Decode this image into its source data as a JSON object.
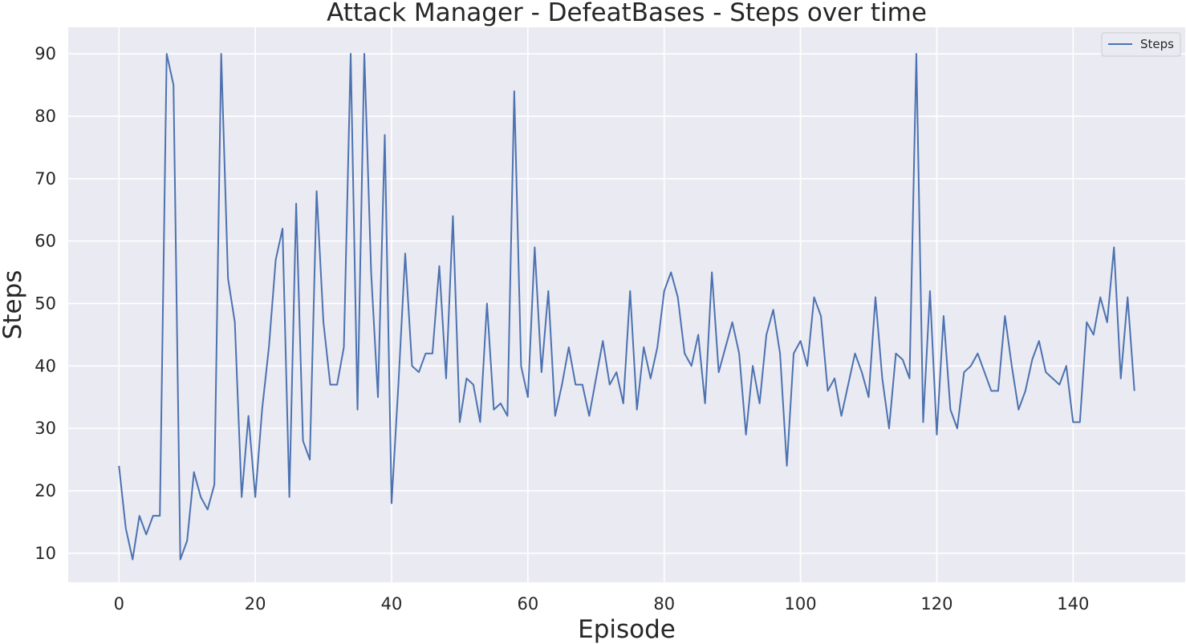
{
  "chart_data": {
    "type": "line",
    "title": "Attack Manager - DefeatBases - Steps over time",
    "xlabel": "Episode",
    "ylabel": "Steps",
    "xlim": [
      -7.45,
      156.45
    ],
    "ylim": [
      5.35,
      94.25
    ],
    "xticks": [
      0,
      20,
      40,
      60,
      80,
      100,
      120,
      140
    ],
    "yticks": [
      10,
      20,
      30,
      40,
      50,
      60,
      70,
      80,
      90
    ],
    "grid": true,
    "legend_position": "top-right",
    "colors": {
      "background": "#eaeaf2",
      "grid": "#ffffff",
      "line": "#4c72b0"
    },
    "series": [
      {
        "name": "Steps",
        "values": [
          24,
          14,
          9,
          16,
          13,
          16,
          16,
          90,
          85,
          9,
          12,
          23,
          19,
          17,
          21,
          90,
          54,
          47,
          19,
          32,
          19,
          33,
          43,
          57,
          62,
          19,
          66,
          28,
          25,
          68,
          47,
          37,
          37,
          43,
          90,
          33,
          90,
          55,
          35,
          77,
          18,
          37,
          58,
          40,
          39,
          42,
          42,
          56,
          38,
          64,
          31,
          38,
          37,
          31,
          50,
          33,
          34,
          32,
          84,
          40,
          35,
          59,
          39,
          52,
          32,
          37,
          43,
          37,
          37,
          32,
          38,
          44,
          37,
          39,
          34,
          52,
          33,
          43,
          38,
          43,
          52,
          55,
          51,
          42,
          40,
          45,
          34,
          55,
          39,
          43,
          47,
          42,
          29,
          40,
          34,
          45,
          49,
          42,
          24,
          42,
          44,
          40,
          51,
          48,
          36,
          38,
          32,
          37,
          42,
          39,
          35,
          51,
          38,
          30,
          42,
          41,
          38,
          90,
          31,
          52,
          29,
          48,
          33,
          30,
          39,
          40,
          42,
          39,
          36,
          36,
          48,
          40,
          33,
          36,
          41,
          44,
          39,
          38,
          37,
          40,
          31,
          31,
          47,
          45,
          51,
          47,
          59,
          38,
          51,
          36
        ]
      }
    ]
  }
}
